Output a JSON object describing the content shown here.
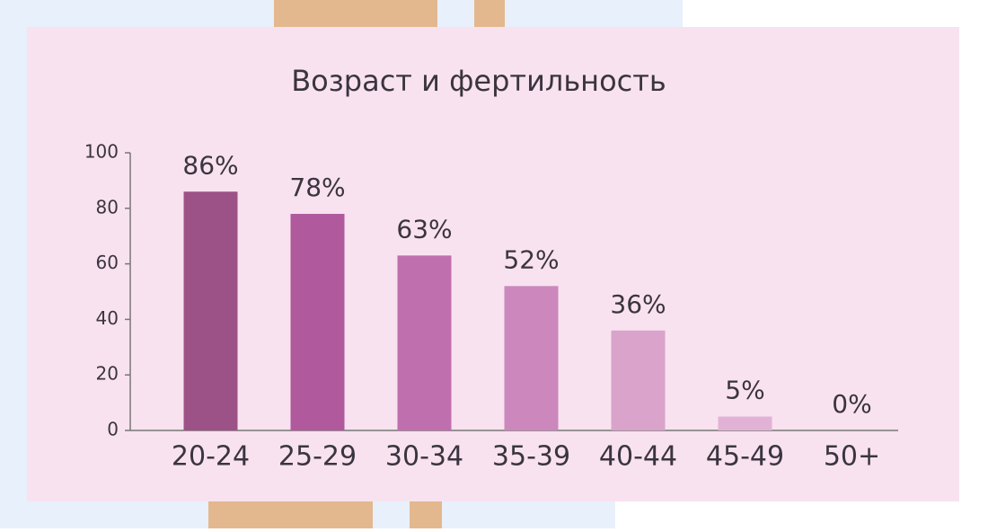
{
  "chart_data": {
    "type": "bar",
    "title": "Возраст и фертильность",
    "categories": [
      "20-24",
      "25-29",
      "30-34",
      "35-39",
      "40-44",
      "45-49",
      "50+"
    ],
    "values": [
      86,
      78,
      63,
      52,
      36,
      5,
      0
    ],
    "value_labels": [
      "86%",
      "78%",
      "63%",
      "52%",
      "36%",
      "5%",
      "0%"
    ],
    "colors": [
      "#9c5187",
      "#b05a9d",
      "#c06fae",
      "#cc88bd",
      "#d9a3cb",
      "#e2b2d6",
      "#e8c4de"
    ],
    "ylim": [
      0,
      100
    ],
    "yticks": [
      0,
      20,
      40,
      60,
      80,
      100
    ]
  }
}
